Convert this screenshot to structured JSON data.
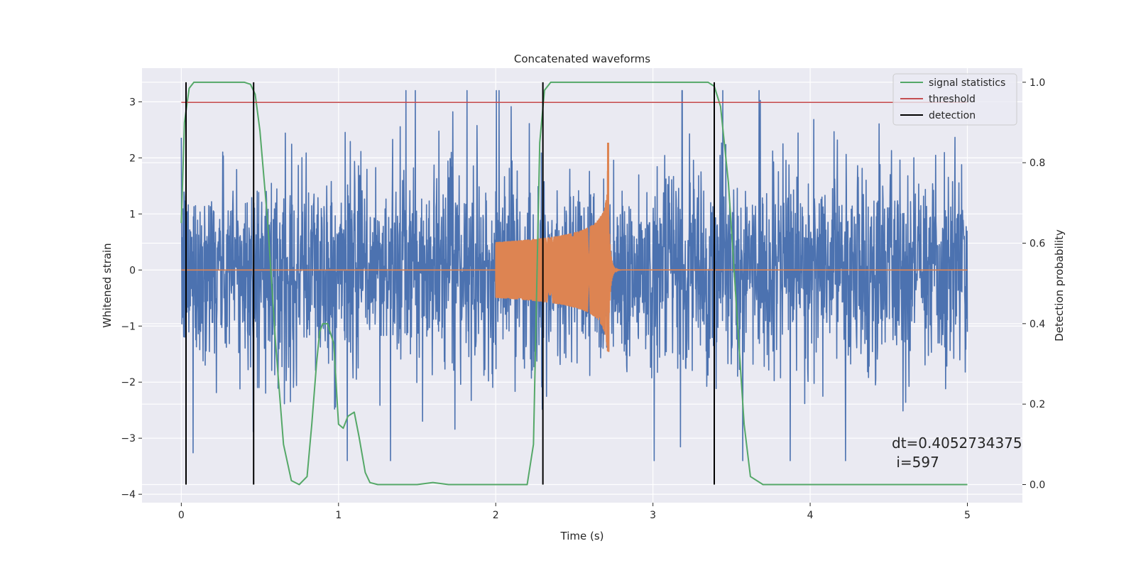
{
  "chart_data": {
    "type": "line",
    "title": "Concatenated waveforms",
    "xlabel": "Time (s)",
    "ylabel": "Whitened strain",
    "y2label": "Detection probability",
    "xlim": [
      -0.25,
      5.35
    ],
    "ylim": [
      -4.15,
      3.6
    ],
    "y2lim": [
      -0.045,
      1.035
    ],
    "x_ticks": [
      0,
      1,
      2,
      3,
      4,
      5
    ],
    "y_ticks": [
      -4,
      -3,
      -2,
      -1,
      0,
      1,
      2,
      3
    ],
    "y2_ticks": [
      0.0,
      0.2,
      0.4,
      0.6,
      0.8,
      1.0
    ],
    "grid": true,
    "legend_position": "top-right",
    "colors": {
      "noise": "#4c72b0",
      "waveform": "#dd8452",
      "signal_statistics": "#55a868",
      "threshold": "#c44e52",
      "detection": "#000000",
      "background": "#eaeaf2"
    },
    "series": [
      {
        "role": "noise",
        "x_range": [
          0,
          5
        ],
        "amplitude_typical": 2.0,
        "y_max": 3.2,
        "y_min": -3.4
      },
      {
        "role": "waveform",
        "chirp_start": 2.0,
        "chirp_end": 2.72,
        "peak_max": 2.27,
        "peak_min": -1.45
      },
      {
        "name": "signal statistics",
        "axis": "right",
        "x": [
          0.0,
          0.02,
          0.05,
          0.08,
          0.12,
          0.2,
          0.4,
          0.44,
          0.47,
          0.5,
          0.55,
          0.6,
          0.65,
          0.7,
          0.75,
          0.8,
          0.83,
          0.86,
          0.88,
          0.9,
          0.93,
          0.97,
          1.0,
          1.03,
          1.06,
          1.1,
          1.13,
          1.17,
          1.2,
          1.25,
          1.5,
          1.6,
          1.7,
          2.0,
          2.2,
          2.24,
          2.28,
          2.31,
          2.35,
          2.4,
          3.35,
          3.39,
          3.43,
          3.48,
          3.53,
          3.58,
          3.62,
          3.7,
          4.0,
          5.0
        ],
        "y": [
          0.65,
          0.9,
          0.985,
          1.0,
          1.0,
          1.0,
          1.0,
          0.995,
          0.97,
          0.88,
          0.65,
          0.35,
          0.1,
          0.01,
          0.0,
          0.02,
          0.15,
          0.3,
          0.38,
          0.4,
          0.4,
          0.35,
          0.15,
          0.14,
          0.17,
          0.18,
          0.12,
          0.03,
          0.005,
          0.0,
          0.0,
          0.005,
          0.0,
          0.0,
          0.0,
          0.1,
          0.85,
          0.98,
          1.0,
          1.0,
          1.0,
          0.99,
          0.94,
          0.75,
          0.45,
          0.15,
          0.02,
          0.0,
          0.0,
          0.0
        ]
      },
      {
        "name": "threshold",
        "axis": "right",
        "x": [
          0.0,
          5.0
        ],
        "y": [
          0.95,
          0.95
        ]
      },
      {
        "name": "detection",
        "axis": "right",
        "x": [
          0.03,
          0.46,
          2.3,
          3.39
        ]
      }
    ],
    "annotation": {
      "line1": "dt=0.4052734375",
      "line2": " i=597",
      "x": 4.5,
      "y": -3.4
    }
  }
}
